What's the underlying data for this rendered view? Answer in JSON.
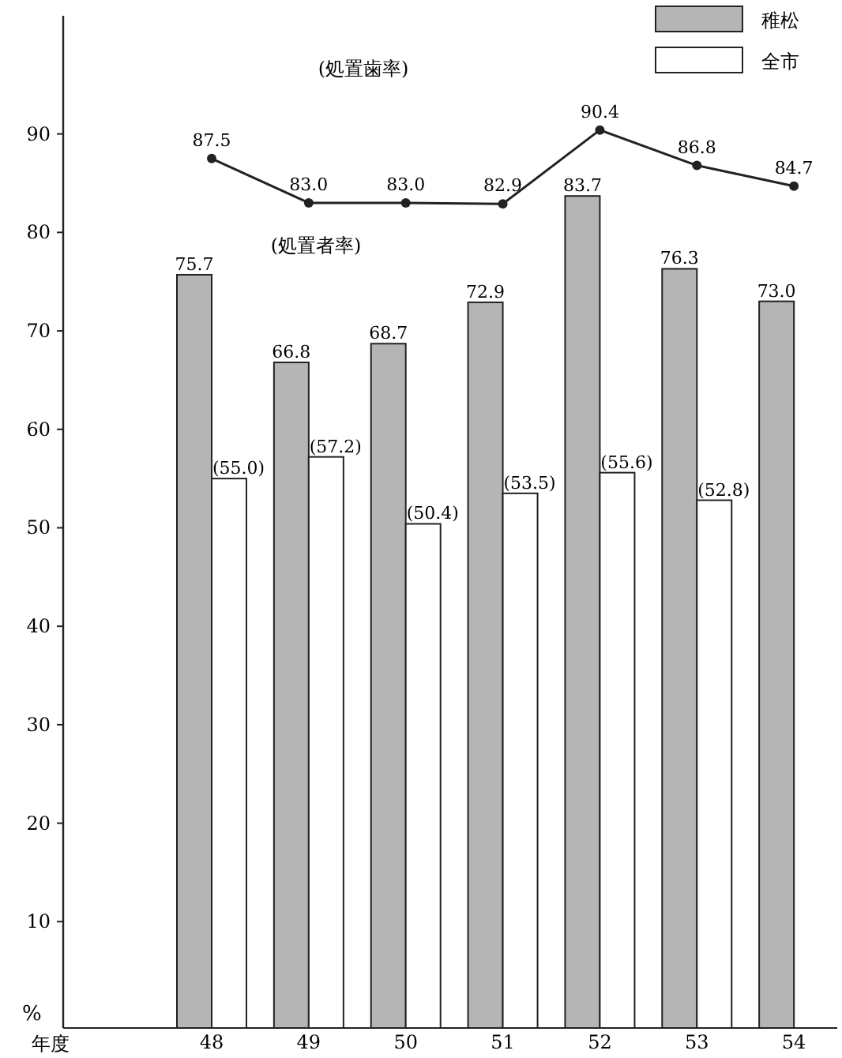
{
  "chart_data": {
    "type": "bar",
    "xlabel": "年度",
    "ylabel": "%",
    "categories": [
      "48",
      "49",
      "50",
      "51",
      "52",
      "53",
      "54"
    ],
    "series": [
      {
        "name": "稚松",
        "color": "#b5b5b5",
        "values": [
          75.7,
          66.8,
          68.7,
          72.9,
          83.7,
          76.3,
          73.0
        ],
        "value_labels": [
          "75.7",
          "66.8",
          "68.7",
          "72.9",
          "83.7",
          "76.3",
          "73.0"
        ]
      },
      {
        "name": "全市",
        "color": "#ffffff",
        "values": [
          55.0,
          57.2,
          50.4,
          53.5,
          55.6,
          52.8,
          null
        ],
        "value_labels": [
          "(55.0)",
          "(57.2)",
          "(50.4)",
          "(53.5)",
          "(55.6)",
          "(52.8)",
          null
        ]
      },
      {
        "type": "line",
        "color": "#222222",
        "values": [
          87.5,
          83.0,
          83.0,
          82.9,
          90.4,
          86.8,
          84.7
        ],
        "value_labels": [
          "87.5",
          "83.0",
          "83.0",
          "82.9",
          "90.4",
          "86.8",
          "84.7"
        ]
      }
    ],
    "annotations": [
      "(処置歯率)",
      "(処置者率)"
    ],
    "ylim": [
      0,
      102
    ],
    "yticks": [
      10,
      20,
      30,
      40,
      50,
      60,
      70,
      80,
      90
    ],
    "legend": "top right",
    "marker": "circle",
    "tick_labels": true
  }
}
